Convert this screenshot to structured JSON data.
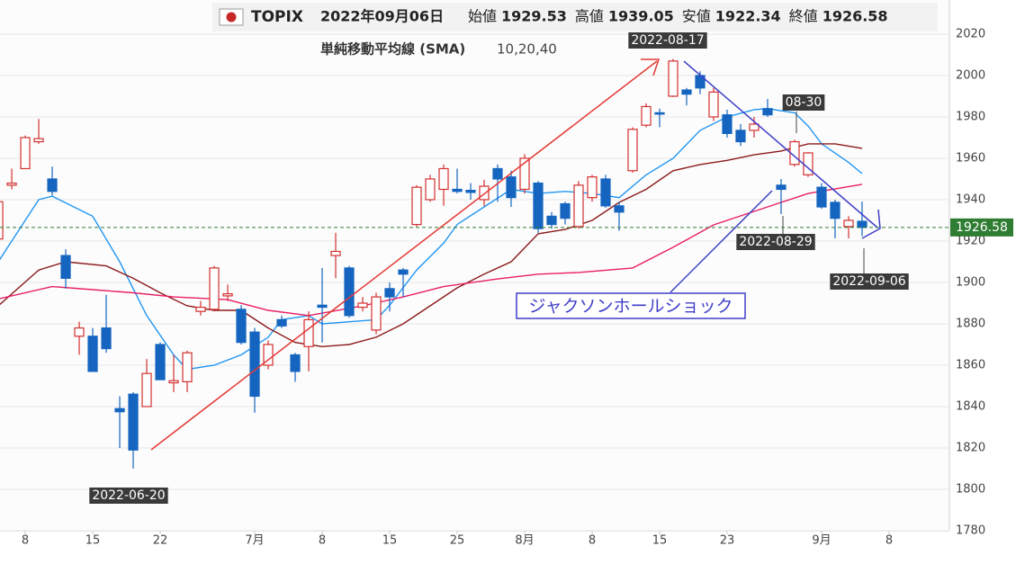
{
  "chart_data": {
    "type": "candlestick",
    "title": "TOPIX",
    "date": "2022年09月06日",
    "fields": [
      {
        "label": "始値",
        "value": 1929.53
      },
      {
        "label": "高値",
        "value": 1939.05
      },
      {
        "label": "安値",
        "value": 1922.34
      },
      {
        "label": "終値",
        "value": 1926.58
      }
    ],
    "indicator": "単純移動平均線 (SMA)",
    "indicator_params": "10,20,40",
    "up_color": "#d32f2f",
    "down_color": "#1565c0",
    "x": [
      0,
      1,
      2,
      3,
      4,
      5,
      6,
      7,
      8,
      9,
      10,
      11,
      12,
      13,
      14,
      15,
      16,
      17,
      18,
      19,
      20,
      21,
      22,
      23,
      24,
      25,
      26,
      27,
      28,
      29,
      30,
      31,
      32,
      33,
      34,
      35,
      36,
      37,
      38,
      39,
      40,
      41,
      42,
      43,
      44,
      45,
      46,
      47,
      48,
      49,
      50,
      51,
      52,
      53,
      54,
      55,
      56,
      57,
      58,
      59,
      60,
      61,
      62,
      63,
      64
    ],
    "open": [
      1921,
      1947,
      1955,
      1968,
      1950,
      1913,
      1874,
      1874,
      1878,
      1839,
      1846,
      1840,
      1870,
      1851.5,
      1852,
      1886,
      1887,
      1893.5,
      1887,
      1876,
      1860,
      1882,
      1865,
      1869,
      1889,
      1913,
      1907,
      1888,
      1877,
      1897,
      1906,
      1928,
      1940,
      1945,
      1945,
      1944.5,
      1940,
      1955,
      1951,
      1945,
      1948,
      1932,
      1938,
      1927,
      1941,
      1950,
      1937,
      1954,
      1976,
      1982,
      1990,
      1993,
      2000,
      1980,
      1981,
      1973.5,
      1973.5,
      1984,
      1947,
      1957,
      1952,
      1946,
      1938.7,
      1927,
      1929.53
    ],
    "high": [
      1940,
      1955,
      1971,
      1979,
      1956,
      1916,
      1881,
      1878,
      1894,
      1845,
      1847,
      1863,
      1871,
      1865,
      1867,
      1891,
      1908,
      1899,
      1889,
      1878,
      1872,
      1884,
      1866,
      1886,
      1907,
      1924,
      1908,
      1893,
      1895,
      1900,
      1907,
      1947,
      1952,
      1957,
      1955,
      1948,
      1949.6,
      1957,
      1954,
      1962,
      1949,
      1934,
      1939,
      1949,
      1952,
      1952,
      1939,
      1975,
      1986.5,
      1984,
      2008,
      1994,
      2002,
      1994,
      1983.5,
      1976.5,
      1980,
      1988.7,
      1950,
      1969,
      1963,
      1948,
      1940,
      1932,
      1939.05
    ],
    "low": [
      1920,
      1945,
      1955,
      1967,
      1942,
      1897,
      1865,
      1857,
      1866,
      1820,
      1810,
      1840,
      1853,
      1847,
      1847,
      1884,
      1886,
      1891,
      1870,
      1837,
      1858,
      1878,
      1852,
      1857,
      1871,
      1902,
      1883,
      1886,
      1875,
      1886,
      1893,
      1927,
      1939,
      1937,
      1943,
      1940,
      1937,
      1939,
      1936.5,
      1943,
      1924,
      1926,
      1928,
      1926,
      1939,
      1936,
      1925,
      1953,
      1975,
      1975,
      1989.6,
      1985.6,
      1991,
      1978,
      1970,
      1966,
      1970,
      1980,
      1933,
      1956,
      1951,
      1935.6,
      1921.3,
      1921.3,
      1922.34
    ],
    "close": [
      1939,
      1948,
      1970,
      1969.5,
      1944,
      1902,
      1878,
      1857,
      1868,
      1837.5,
      1819,
      1856,
      1853,
      1852.5,
      1866,
      1888,
      1907,
      1894.5,
      1871,
      1845,
      1870,
      1879,
      1857,
      1882,
      1888,
      1915,
      1884,
      1890,
      1893,
      1893,
      1904,
      1946,
      1950,
      1955,
      1944,
      1943.5,
      1946.5,
      1950,
      1941,
      1960,
      1926,
      1928,
      1931,
      1947,
      1951,
      1937,
      1934,
      1974,
      1985,
      1981.5,
      2007,
      1991,
      1994,
      1992,
      1972,
      1968,
      1976.5,
      1981,
      1945,
      1968,
      1962.6,
      1936.5,
      1931,
      1930,
      1926.58
    ],
    "lines": [
      {
        "color": "#2196f3",
        "x": [
          0,
          3,
          4,
          7,
          9,
          11,
          13,
          14,
          16,
          18,
          20,
          21,
          23,
          24,
          26,
          28,
          29,
          31,
          33,
          34,
          36,
          38,
          40,
          42,
          44,
          46,
          48,
          50,
          52,
          54,
          56,
          57,
          59,
          60,
          61,
          63,
          64
        ],
        "values": [
          1910,
          1940,
          1941.7,
          1932,
          1910,
          1884,
          1865,
          1858,
          1860,
          1865,
          1873.5,
          1882,
          1884,
          1880,
          1881,
          1882,
          1889,
          1906,
          1919,
          1928,
          1936.5,
          1945,
          1943,
          1944,
          1943,
          1941,
          1952,
          1960,
          1973.5,
          1980,
          1983.5,
          1984,
          1982,
          1975.6,
          1967,
          1958,
          1952.6
        ]
      },
      {
        "color": "#8b1a1a",
        "x": [
          0,
          3,
          5,
          8,
          10,
          12,
          14,
          16,
          18,
          20,
          22,
          24,
          26,
          28,
          30,
          32,
          34,
          36,
          38,
          40,
          42,
          44,
          46,
          48,
          50,
          52,
          54,
          56,
          58,
          60,
          62,
          64
        ],
        "values": [
          1888.7,
          1906,
          1910,
          1908,
          1902,
          1895,
          1888.7,
          1886.5,
          1886.5,
          1878,
          1871,
          1869,
          1870,
          1873.5,
          1880,
          1888.7,
          1897.4,
          1904,
          1910,
          1923.5,
          1925.6,
          1930,
          1938.7,
          1945,
          1954,
          1957,
          1959,
          1961.7,
          1963.5,
          1967,
          1967,
          1964.8
        ]
      },
      {
        "color": "#e91e63",
        "x": [
          0,
          4,
          7,
          10,
          13,
          17,
          20,
          23,
          27,
          30,
          33,
          37,
          40,
          43,
          47,
          50,
          53,
          57,
          60,
          64
        ],
        "values": [
          1892,
          1898,
          1896.5,
          1895,
          1893,
          1891.7,
          1886.5,
          1884,
          1888.7,
          1893,
          1898,
          1901.7,
          1904,
          1904.8,
          1907,
          1917,
          1927.8,
          1936.5,
          1943,
          1947.4
        ]
      }
    ],
    "last_price": 1926.58,
    "annotations": [
      "2022-06-20",
      "2022-08-17",
      "08-30",
      "2022-08-29",
      "2022-09-06",
      "ジャクソンホールショック"
    ],
    "xlim": [
      0.13,
      70.47
    ],
    "xticks": [
      {
        "value": 2,
        "label": "8"
      },
      {
        "value": 7,
        "label": "15"
      },
      {
        "value": 12,
        "label": "22"
      },
      {
        "value": 19,
        "label": "7月"
      },
      {
        "value": 24,
        "label": "8"
      },
      {
        "value": 29,
        "label": "15"
      },
      {
        "value": 34,
        "label": "25"
      },
      {
        "value": 39,
        "label": "8月"
      },
      {
        "value": 44,
        "label": "8"
      },
      {
        "value": 49,
        "label": "15"
      },
      {
        "value": 54,
        "label": "23"
      },
      {
        "value": 61,
        "label": "9月"
      },
      {
        "value": 66,
        "label": "8"
      }
    ],
    "ylim": [
      1780,
      2036.5
    ],
    "yticks": [
      1780,
      1800,
      1820,
      1840,
      1860,
      1880,
      1900,
      1920,
      1940,
      1960,
      1980,
      2000,
      2020
    ],
    "grid": true
  }
}
